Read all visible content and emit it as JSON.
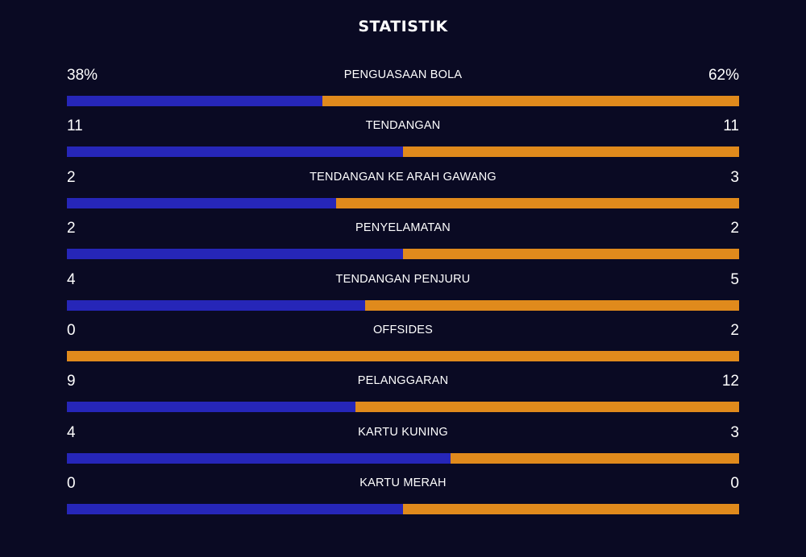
{
  "title": "STATISTIK",
  "colors": {
    "background": "#0a0a23",
    "home": "#2626b8",
    "away": "#e08a1c"
  },
  "stats": [
    {
      "label": "PENGUASAAN BOLA",
      "home": "38%",
      "away": "62%",
      "home_share": 0.38
    },
    {
      "label": "TENDANGAN",
      "home": "11",
      "away": "11",
      "home_share": 0.5
    },
    {
      "label": "TENDANGAN KE ARAH GAWANG",
      "home": "2",
      "away": "3",
      "home_share": 0.4
    },
    {
      "label": "PENYELAMATAN",
      "home": "2",
      "away": "2",
      "home_share": 0.5
    },
    {
      "label": "TENDANGAN PENJURU",
      "home": "4",
      "away": "5",
      "home_share": 0.444
    },
    {
      "label": "OFFSIDES",
      "home": "0",
      "away": "2",
      "home_share": 0.0
    },
    {
      "label": "PELANGGARAN",
      "home": "9",
      "away": "12",
      "home_share": 0.429
    },
    {
      "label": "KARTU KUNING",
      "home": "4",
      "away": "3",
      "home_share": 0.571
    },
    {
      "label": "KARTU MERAH",
      "home": "0",
      "away": "0",
      "home_share": 0.5
    }
  ]
}
